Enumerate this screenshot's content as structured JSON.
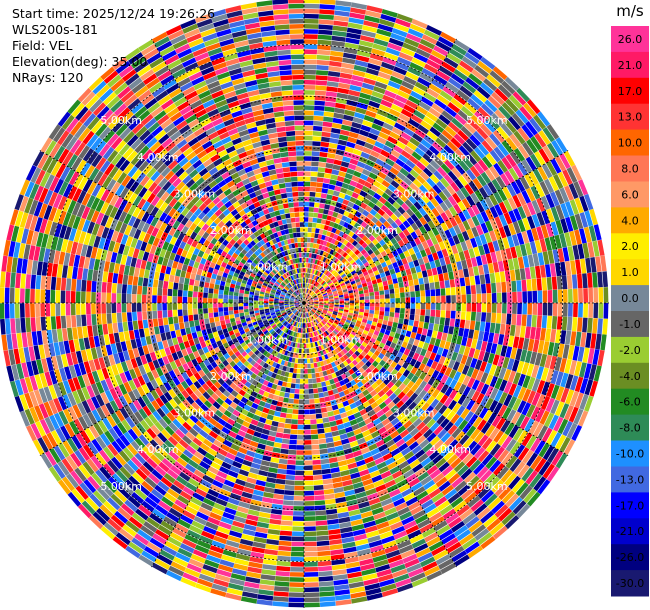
{
  "chart_data": {
    "type": "heatmap",
    "subtype": "radar-ppi",
    "info_lines": [
      "Start time: 2025/12/24 19:26:26",
      "WLS200s-181",
      "Field: VEL",
      "Elevation(deg): 35.00",
      "NRays: 120"
    ],
    "field": "VEL",
    "elevation_deg": 35.0,
    "n_rays": 120,
    "range_ring_labels": [
      "1.00km",
      "2.00km",
      "3.00km",
      "4.00km",
      "5.00km"
    ],
    "range_rings_km": [
      1,
      2,
      3,
      4,
      5
    ],
    "max_range_km": 5.9,
    "colorbar": {
      "unit": "m/s",
      "levels": [
        "26.0",
        "21.0",
        "17.0",
        "13.0",
        "10.0",
        "8.0",
        "6.0",
        "4.0",
        "2.0",
        "1.0",
        "0.0",
        "-1.0",
        "-2.0",
        "-4.0",
        "-6.0",
        "-8.0",
        "-10.0",
        "-13.0",
        "-17.0",
        "-21.0",
        "-26.0",
        "-30.0"
      ],
      "colors": [
        "#ff3399",
        "#ff1a66",
        "#ff0000",
        "#ff3333",
        "#ff6600",
        "#ff7755",
        "#ff9966",
        "#ffaa00",
        "#ffee00",
        "#ffd700",
        "#778899",
        "#666666",
        "#9acd32",
        "#6b8e23",
        "#228b22",
        "#2e8b57",
        "#1e90ff",
        "#4169e1",
        "#0000ff",
        "#0000cd",
        "#000080",
        "#191970"
      ]
    }
  }
}
